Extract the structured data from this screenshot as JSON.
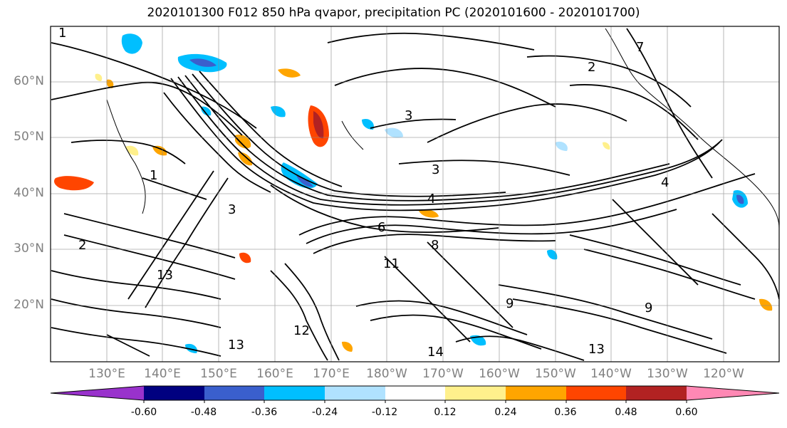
{
  "title": "2020101300 F012 850 hPa qvapor, precipitation PC (2020101600 - 2020101700)",
  "lat_labels": [
    "60°N",
    "50°N",
    "40°N",
    "30°N",
    "20°N"
  ],
  "lon_labels": [
    "130°E",
    "140°E",
    "150°E",
    "160°E",
    "170°E",
    "180°W",
    "170°W",
    "160°W",
    "150°W",
    "140°W",
    "130°W",
    "120°W"
  ],
  "colorbar": {
    "colors": [
      "#9932cc",
      "#000080",
      "#3a5fcd",
      "#00bfff",
      "#b0e2ff",
      "#ffffff",
      "#fff08c",
      "#ffa500",
      "#ff4500",
      "#b22222",
      "#ff88b4"
    ],
    "tick_labels": [
      "-0.60",
      "-0.48",
      "-0.36",
      "-0.24",
      "-0.12",
      "0.12",
      "0.24",
      "0.36",
      "0.48",
      "0.60"
    ]
  },
  "contour_labels": [
    "1",
    "2",
    "3",
    "3",
    "4",
    "4",
    "6",
    "8",
    "9",
    "11",
    "12",
    "13",
    "13",
    "14",
    "1",
    "2",
    "3",
    "9",
    "13",
    "7"
  ]
}
